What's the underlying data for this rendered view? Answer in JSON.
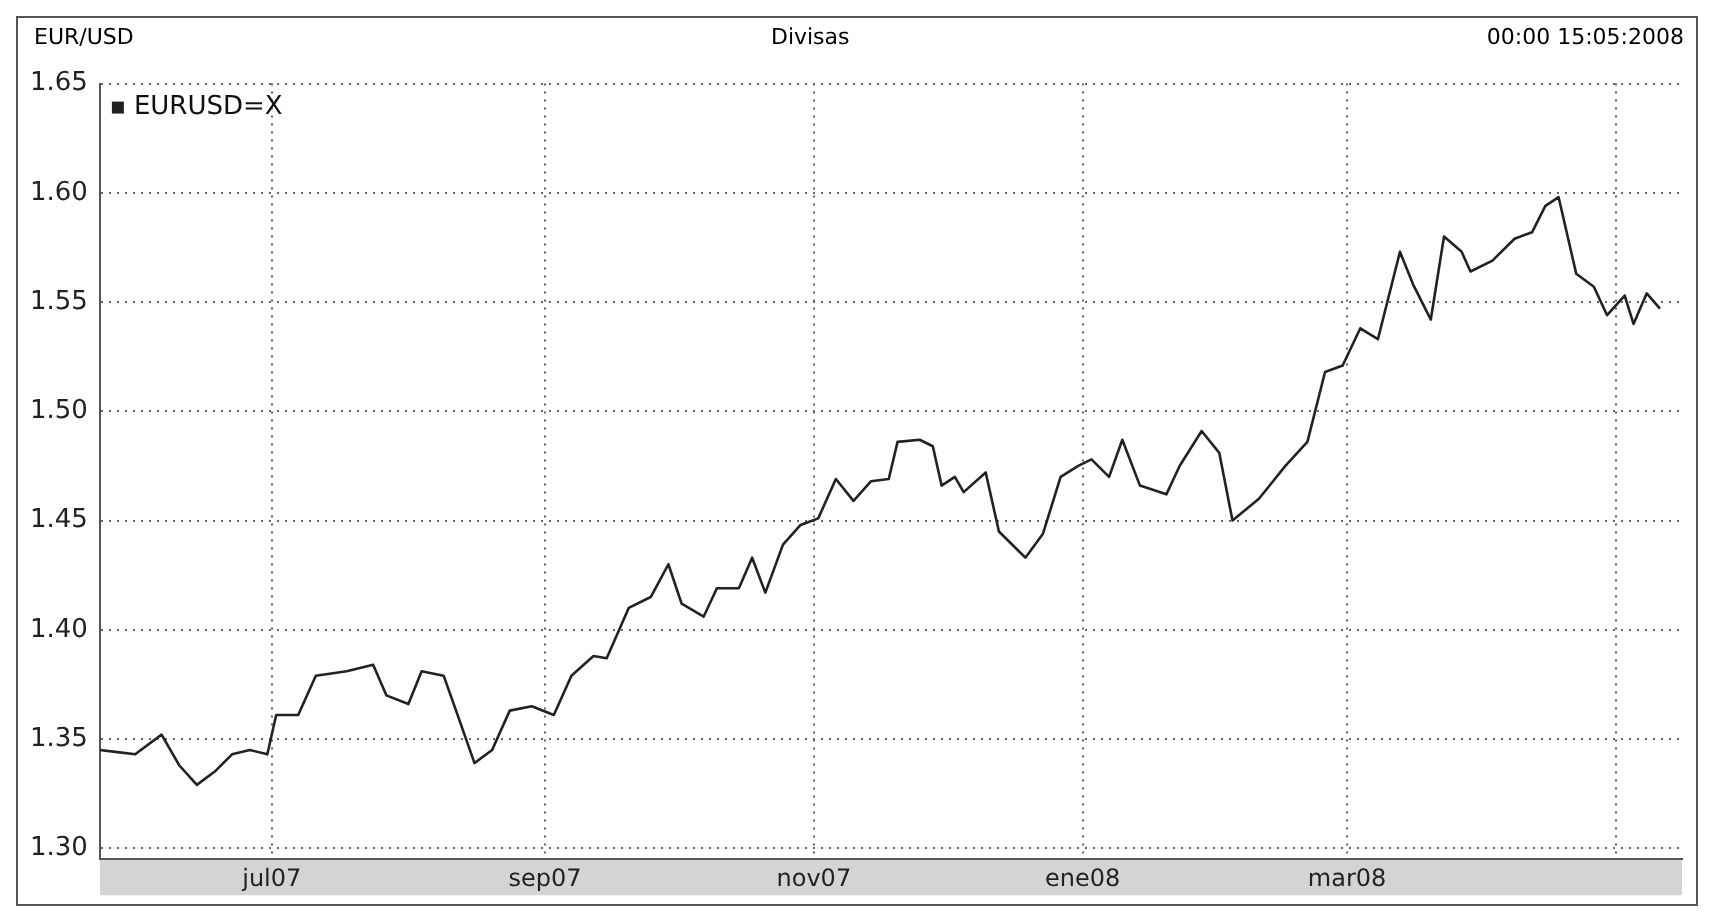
{
  "chart_data": {
    "type": "line",
    "title": "Divisas",
    "ylabel": "EUR/USD",
    "annotations": [
      "00:00 15:05:2008"
    ],
    "xlim": [
      "2007-05-23",
      "2008-05-16"
    ],
    "xticks": [
      {
        "value": "2007-07-01",
        "label": "jul07"
      },
      {
        "value": "2007-09-01",
        "label": "sep07"
      },
      {
        "value": "2007-11-01",
        "label": "nov07"
      },
      {
        "value": "2008-01-01",
        "label": "ene08"
      },
      {
        "value": "2008-03-01",
        "label": "mar08"
      },
      {
        "value": "2008-05-01",
        "label": null
      }
    ],
    "ylim": [
      1.295,
      1.65
    ],
    "yticks": [
      {
        "value": 1.3,
        "label": "1.30"
      },
      {
        "value": 1.35,
        "label": "1.35"
      },
      {
        "value": 1.4,
        "label": "1.40"
      },
      {
        "value": 1.45,
        "label": "1.45"
      },
      {
        "value": 1.5,
        "label": "1.50"
      },
      {
        "value": 1.55,
        "label": "1.55"
      },
      {
        "value": 1.6,
        "label": "1.60"
      },
      {
        "value": 1.65,
        "label": "1.65"
      }
    ],
    "grid": true,
    "legend": "top left",
    "marker": "none",
    "line_style": "solid",
    "x": [
      "2007-05-23",
      "2007-05-27",
      "2007-05-31",
      "2007-06-06",
      "2007-06-10",
      "2007-06-14",
      "2007-06-18",
      "2007-06-22",
      "2007-06-26",
      "2007-06-30",
      "2007-07-02",
      "2007-07-07",
      "2007-07-11",
      "2007-07-18",
      "2007-07-24",
      "2007-07-27",
      "2007-08-01",
      "2007-08-04",
      "2007-08-09",
      "2007-08-12",
      "2007-08-16",
      "2007-08-20",
      "2007-08-24",
      "2007-08-29",
      "2007-09-03",
      "2007-09-07",
      "2007-09-12",
      "2007-09-15",
      "2007-09-20",
      "2007-09-25",
      "2007-09-29",
      "2007-10-02",
      "2007-10-07",
      "2007-10-10",
      "2007-10-15",
      "2007-10-18",
      "2007-10-21",
      "2007-10-25",
      "2007-10-29",
      "2007-11-02",
      "2007-11-06",
      "2007-11-10",
      "2007-11-14",
      "2007-11-18",
      "2007-11-20",
      "2007-11-25",
      "2007-11-28",
      "2007-11-30",
      "2007-12-03",
      "2007-12-05",
      "2007-12-10",
      "2007-12-13",
      "2007-12-19",
      "2007-12-23",
      "2007-12-27",
      "2007-12-31",
      "2008-01-03",
      "2008-01-07",
      "2008-01-10",
      "2008-01-14",
      "2008-01-20",
      "2008-01-23",
      "2008-01-28",
      "2008-02-01",
      "2008-02-04",
      "2008-02-10",
      "2008-02-16",
      "2008-02-21",
      "2008-02-25",
      "2008-02-29",
      "2008-03-04",
      "2008-03-08",
      "2008-03-13",
      "2008-03-16",
      "2008-03-20",
      "2008-03-23",
      "2008-03-27",
      "2008-03-29",
      "2008-04-03",
      "2008-04-08",
      "2008-04-12",
      "2008-04-15",
      "2008-04-18",
      "2008-04-22",
      "2008-04-26",
      "2008-04-29",
      "2008-05-03",
      "2008-05-05",
      "2008-05-08",
      "2008-05-11"
    ],
    "series": [
      {
        "name": "EURUSD=X",
        "color": "#222222",
        "values": [
          1.345,
          1.344,
          1.343,
          1.352,
          1.338,
          1.329,
          1.335,
          1.343,
          1.345,
          1.343,
          1.361,
          1.361,
          1.379,
          1.381,
          1.384,
          1.37,
          1.366,
          1.381,
          1.379,
          1.362,
          1.339,
          1.345,
          1.363,
          1.365,
          1.361,
          1.379,
          1.388,
          1.387,
          1.41,
          1.415,
          1.43,
          1.412,
          1.406,
          1.419,
          1.419,
          1.433,
          1.417,
          1.439,
          1.448,
          1.451,
          1.469,
          1.459,
          1.468,
          1.469,
          1.486,
          1.487,
          1.484,
          1.466,
          1.47,
          1.463,
          1.472,
          1.445,
          1.433,
          1.444,
          1.47,
          1.475,
          1.478,
          1.47,
          1.487,
          1.466,
          1.462,
          1.475,
          1.491,
          1.481,
          1.45,
          1.46,
          1.475,
          1.486,
          1.518,
          1.521,
          1.538,
          1.533,
          1.573,
          1.558,
          1.542,
          1.58,
          1.573,
          1.564,
          1.569,
          1.579,
          1.582,
          1.594,
          1.598,
          1.563,
          1.557,
          1.544,
          1.553,
          1.54,
          1.554,
          1.547
        ]
      }
    ]
  }
}
